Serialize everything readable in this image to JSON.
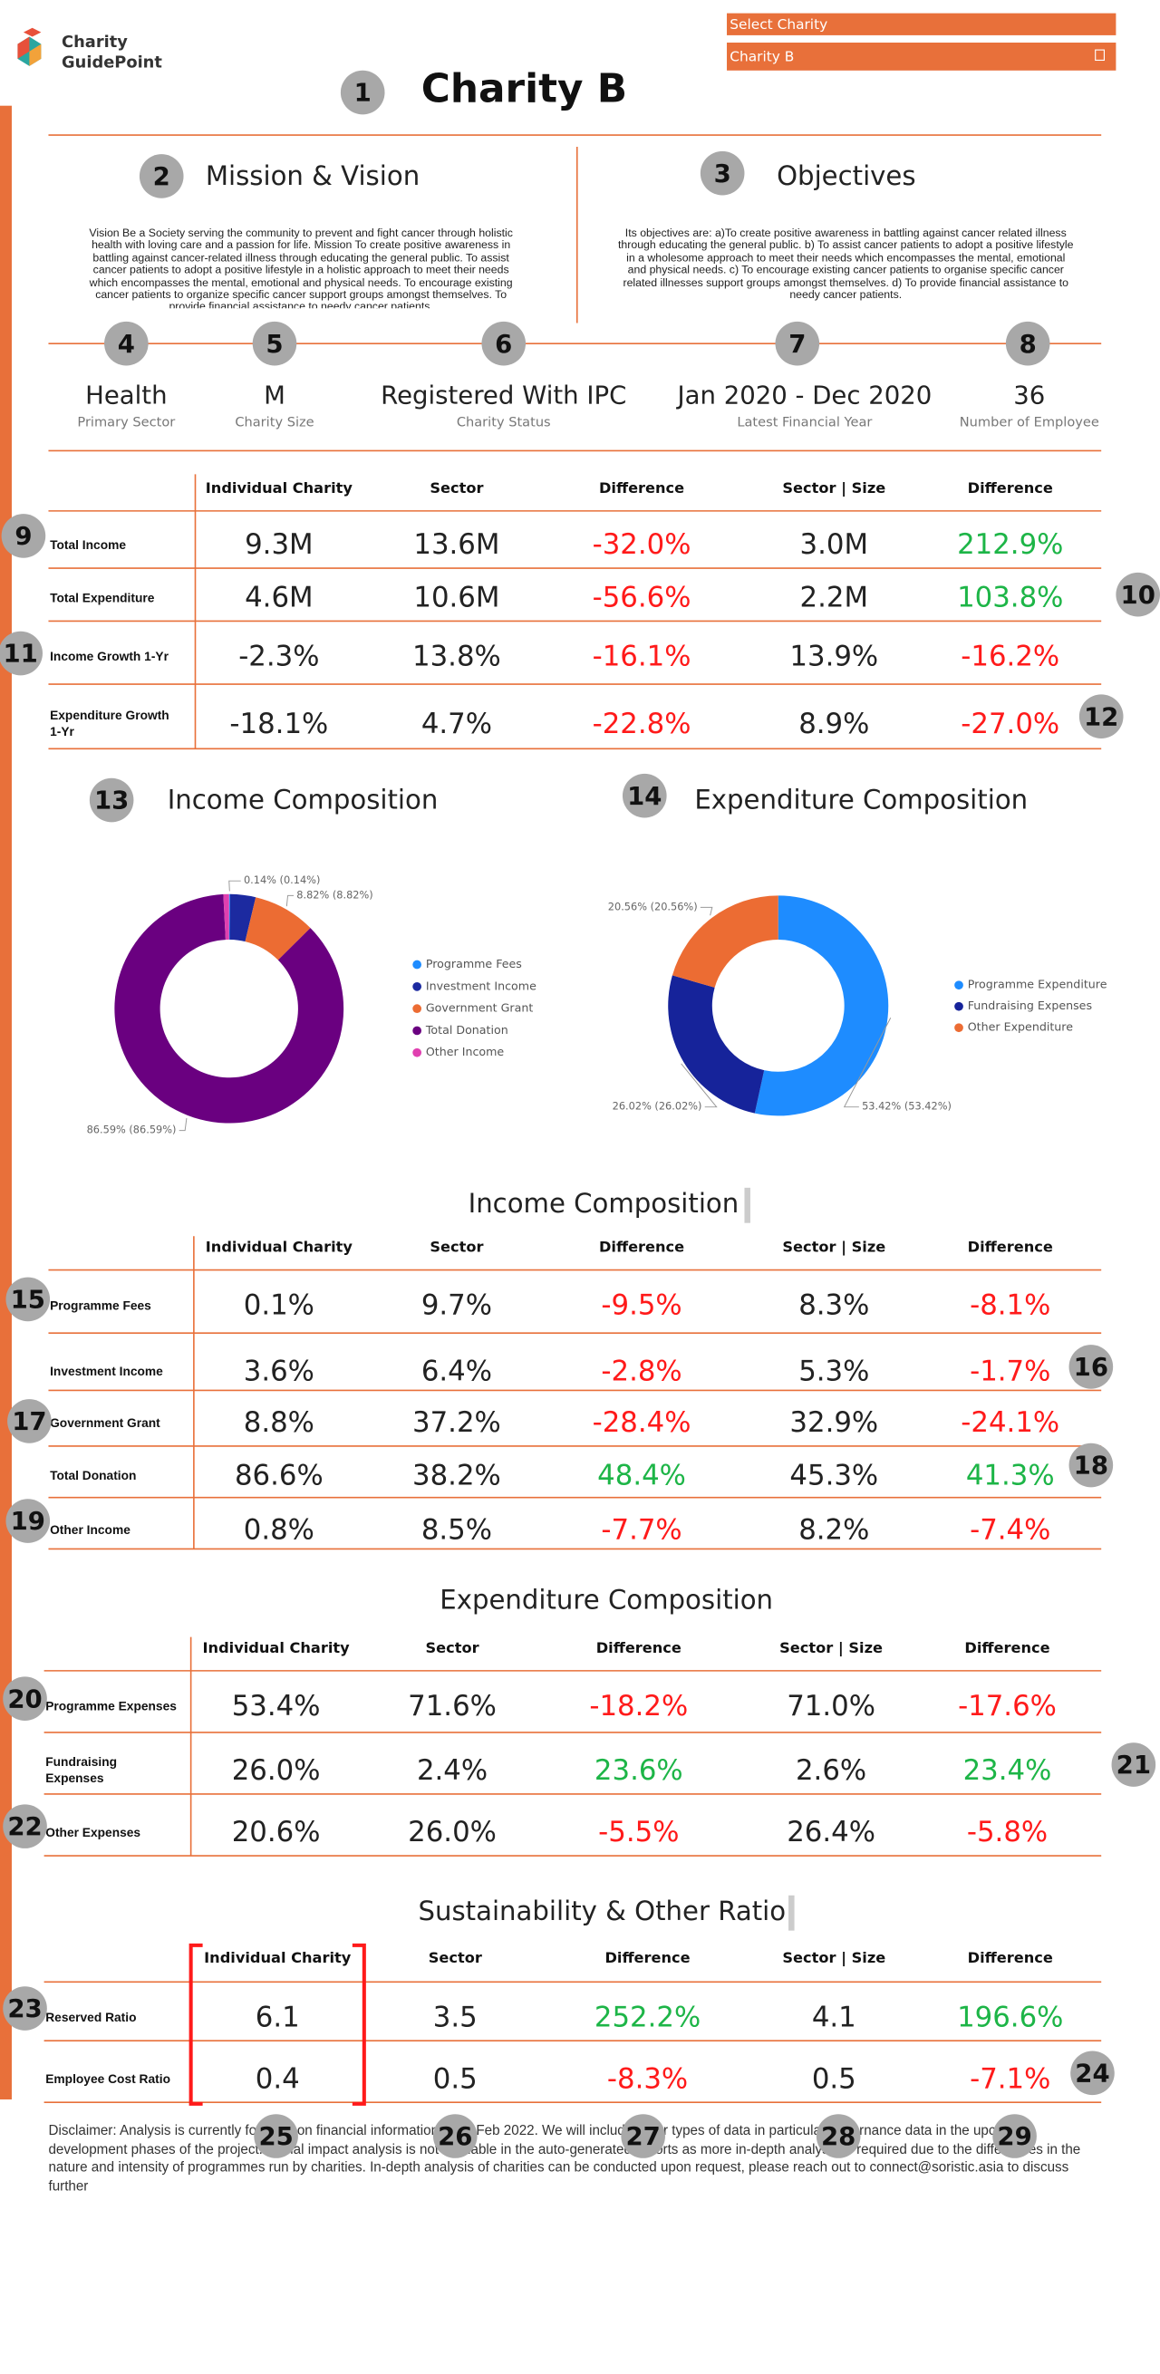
{
  "logo": {
    "line1": "Charity",
    "line2": "GuidePoint"
  },
  "select": {
    "label": "Select Charity",
    "value": "Charity B"
  },
  "title": "Charity B",
  "badges": [
    1,
    2,
    3,
    4,
    5,
    6,
    7,
    8,
    9,
    10,
    11,
    12,
    13,
    14,
    15,
    16,
    17,
    18,
    19,
    20,
    21,
    22,
    23,
    24,
    25,
    26,
    27,
    28,
    29
  ],
  "mission": {
    "title": "Mission & Vision",
    "text": "Vision Be a Society serving the community to prevent and fight cancer through holistic health with loving care and a passion for life. Mission To create positive awareness in battling against cancer-related illness through educating the general public. To assist cancer patients to adopt a positive lifestyle in a holistic approach to meet their needs which encompasses the mental, emotional and physical needs. To encourage existing cancer patients to organize specific cancer support groups amongst themselves. To provide financial assistance to needy cancer patients."
  },
  "objectives": {
    "title": "Objectives",
    "text": "Its objectives are: a)To create positive awareness in battling against cancer related illness through educating the general public. b) To assist cancer patients to adopt a positive lifestyle in a wholesome approach to meet their needs which encompasses the mental, emotional and physical needs. c) To encourage existing cancer patients to organise specific cancer related illnesses support groups amongst themselves. d) To provide financial assistance to needy cancer patients."
  },
  "stats": [
    {
      "value": "Health",
      "label": "Primary Sector"
    },
    {
      "value": "M",
      "label": "Charity Size"
    },
    {
      "value": "Registered With IPC",
      "label": "Charity Status"
    },
    {
      "value": "Jan 2020 - Dec 2020",
      "label": "Latest Financial Year"
    },
    {
      "value": "36",
      "label": "Number of Employee"
    }
  ],
  "summary": {
    "headers": [
      "Individual Charity",
      "Sector",
      "Difference",
      "Sector | Size",
      "Difference"
    ],
    "rows": [
      {
        "label": "Total Income",
        "cells": [
          "9.3M",
          "13.6M",
          "-32.0%",
          "3.0M",
          "212.9%"
        ]
      },
      {
        "label": "Total Expenditure",
        "cells": [
          "4.6M",
          "10.6M",
          "-56.6%",
          "2.2M",
          "103.8%"
        ]
      },
      {
        "label": "Income Growth 1-Yr",
        "cells": [
          "-2.3%",
          "13.8%",
          "-16.1%",
          "13.9%",
          "-16.2%"
        ]
      },
      {
        "label": "Expenditure Growth 1-Yr",
        "cells": [
          "-18.1%",
          "4.7%",
          "-22.8%",
          "8.9%",
          "-27.0%"
        ]
      }
    ]
  },
  "charts": [
    {
      "type": "donut",
      "title": "Income Composition",
      "categories": [
        "Programme Fees",
        "Investment Income",
        "Government Grant",
        "Total Donation",
        "Other Income"
      ],
      "values": [
        0.14,
        3.6,
        8.82,
        86.59,
        0.8
      ],
      "value_labels": [
        "0.14% (0.14%)",
        null,
        "8.82% (8.82%)",
        "86.59% (86.59%)",
        null
      ],
      "colors": [
        "#1e8cff",
        "#1c2aa0",
        "#ec6c33",
        "#6a0080",
        "#e040b0"
      ]
    },
    {
      "type": "donut",
      "title": "Expenditure Composition",
      "categories": [
        "Programme Expenditure",
        "Fundraising Expenses",
        "Other Expenditure"
      ],
      "values": [
        53.42,
        26.02,
        20.56
      ],
      "value_labels": [
        "53.42% (53.42%)",
        "26.02% (26.02%)",
        "20.56% (20.56%)"
      ],
      "colors": [
        "#1e8cff",
        "#16239a",
        "#ec6c33"
      ]
    }
  ],
  "income_table": {
    "title": "Income Composition",
    "headers": [
      "Individual Charity",
      "Sector",
      "Difference",
      "Sector | Size",
      "Difference"
    ],
    "rows": [
      {
        "label": "Programme Fees",
        "cells": [
          "0.1%",
          "9.7%",
          "-9.5%",
          "8.3%",
          "-8.1%"
        ]
      },
      {
        "label": "Investment Income",
        "cells": [
          "3.6%",
          "6.4%",
          "-2.8%",
          "5.3%",
          "-1.7%"
        ]
      },
      {
        "label": "Government Grant",
        "cells": [
          "8.8%",
          "37.2%",
          "-28.4%",
          "32.9%",
          "-24.1%"
        ]
      },
      {
        "label": "Total Donation",
        "cells": [
          "86.6%",
          "38.2%",
          "48.4%",
          "45.3%",
          "41.3%"
        ]
      },
      {
        "label": "Other Income",
        "cells": [
          "0.8%",
          "8.5%",
          "-7.7%",
          "8.2%",
          "-7.4%"
        ]
      }
    ]
  },
  "expenditure_table": {
    "title": "Expenditure Composition",
    "headers": [
      "Individual Charity",
      "Sector",
      "Difference",
      "Sector | Size",
      "Difference"
    ],
    "rows": [
      {
        "label": "Programme Expenses",
        "cells": [
          "53.4%",
          "71.6%",
          "-18.2%",
          "71.0%",
          "-17.6%"
        ]
      },
      {
        "label": "Fundraising Expenses",
        "cells": [
          "26.0%",
          "2.4%",
          "23.6%",
          "2.6%",
          "23.4%"
        ]
      },
      {
        "label": "Other Expenses",
        "cells": [
          "20.6%",
          "26.0%",
          "-5.5%",
          "26.4%",
          "-5.8%"
        ]
      }
    ]
  },
  "ratio_table": {
    "title": "Sustainability & Other Ratio",
    "headers": [
      "Individual Charity",
      "Sector",
      "Difference",
      "Sector | Size",
      "Difference"
    ],
    "rows": [
      {
        "label": "Reserved Ratio",
        "cells": [
          "6.1",
          "3.5",
          "252.2%",
          "4.1",
          "196.6%"
        ]
      },
      {
        "label": "Employee Cost Ratio",
        "cells": [
          "0.4",
          "0.5",
          "-8.3%",
          "0.5",
          "-7.1%"
        ]
      }
    ]
  },
  "disclaimer": "Disclaimer: Analysis is currently focused on financial information as of Feb 2022. We will include other types of data in particular governance data in the upcoming development phases of the project. Social impact analysis is not available in the auto-generated reports as more in-depth analysis is required due to the differences in the nature and intensity of programmes run by charities. In-depth analysis of charities can be conducted upon request, please reach out to connect@soristic.asia to discuss further"
}
